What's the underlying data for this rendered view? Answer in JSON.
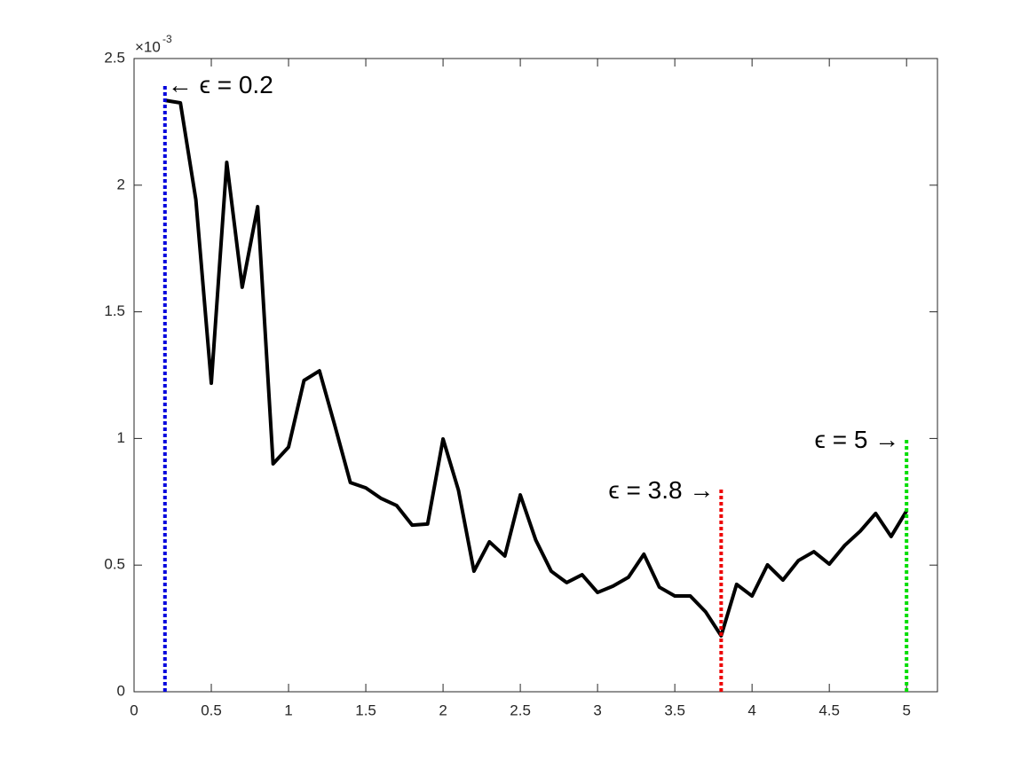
{
  "chart_data": {
    "type": "line",
    "x": [
      0.2,
      0.3,
      0.4,
      0.5,
      0.6,
      0.7,
      0.8,
      0.9,
      1.0,
      1.1,
      1.2,
      1.3,
      1.4,
      1.5,
      1.6,
      1.7,
      1.8,
      1.9,
      2.0,
      2.1,
      2.2,
      2.3,
      2.4,
      2.5,
      2.6,
      2.7,
      2.8,
      2.9,
      3.0,
      3.1,
      3.2,
      3.3,
      3.4,
      3.5,
      3.6,
      3.7,
      3.8,
      3.9,
      4.0,
      4.1,
      4.2,
      4.3,
      4.4,
      4.5,
      4.6,
      4.7,
      4.8,
      4.9,
      5.0
    ],
    "values": [
      2.335,
      2.325,
      1.943,
      1.218,
      2.09,
      1.597,
      1.915,
      0.9,
      0.966,
      1.229,
      1.267,
      1.05,
      0.826,
      0.805,
      0.763,
      0.735,
      0.658,
      0.662,
      0.998,
      0.795,
      0.476,
      0.592,
      0.536,
      0.777,
      0.599,
      0.476,
      0.431,
      0.462,
      0.392,
      0.417,
      0.452,
      0.543,
      0.413,
      0.378,
      0.378,
      0.315,
      0.221,
      0.424,
      0.378,
      0.501,
      0.441,
      0.518,
      0.553,
      0.504,
      0.578,
      0.634,
      0.704,
      0.613,
      0.714
    ],
    "color": "#000000",
    "xlim": [
      0,
      5.2
    ],
    "ylim": [
      0,
      2.5
    ],
    "xticks": [
      0,
      0.5,
      1,
      1.5,
      2,
      2.5,
      3,
      3.5,
      4,
      4.5,
      5
    ],
    "yticks": [
      0,
      0.5,
      1,
      1.5,
      2,
      2.5
    ],
    "y_multiplier": "×10",
    "y_multiplier_exponent": "-3",
    "grid": false,
    "reference_lines": [
      {
        "x": 0.2,
        "top": 2.4,
        "color": "#0000dd",
        "label": "← ϵ = 0.2"
      },
      {
        "x": 3.8,
        "top": 0.8,
        "color": "#ee0000",
        "label": "ϵ = 3.8 →"
      },
      {
        "x": 5,
        "top": 1.0,
        "color": "#00dd00",
        "label": "ϵ = 5 →"
      }
    ]
  }
}
